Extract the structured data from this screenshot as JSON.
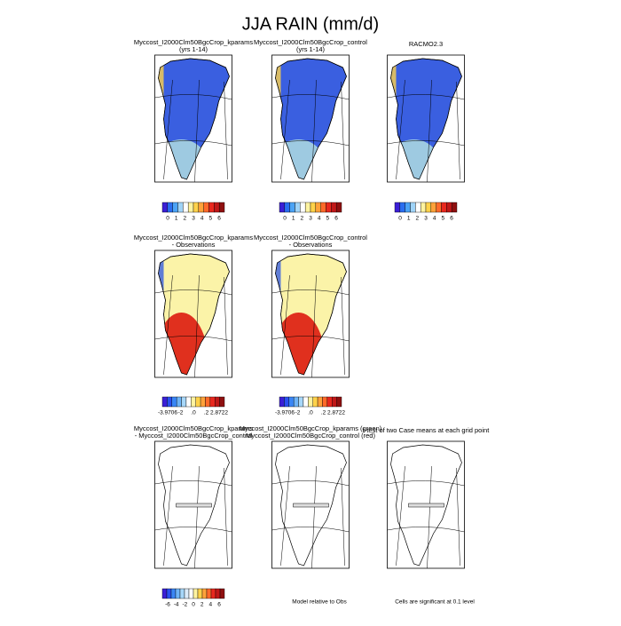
{
  "title": "JJA RAIN (mm/d)",
  "rows": [
    {
      "panels": [
        {
          "title": [
            "Myccost_I2000Clm50BgcCrop_kparams",
            "(yrs 1-14)"
          ],
          "colorbar": [
            "0",
            "1",
            "2",
            "3",
            "4",
            "5",
            "6"
          ]
        },
        {
          "title": [
            "Myccost_I2000Clm50BgcCrop_control",
            "(yrs 1-14)"
          ],
          "colorbar": [
            "0",
            "1",
            "2",
            "3",
            "4",
            "5",
            "6"
          ]
        },
        {
          "title": [
            "RACMO2.3"
          ],
          "colorbar": [
            "0",
            "1",
            "2",
            "3",
            "4",
            "5",
            "6"
          ]
        }
      ]
    },
    {
      "panels": [
        {
          "title": [
            "Myccost_I2000Clm50BgcCrop_kparams",
            "- Observations"
          ],
          "colorbar": [
            "-3.9706",
            "-2",
            ".0",
            ".2",
            "2.8722"
          ]
        },
        {
          "title": [
            "Myccost_I2000Clm50BgcCrop_control",
            "- Observations"
          ],
          "colorbar": [
            "-3.9706",
            "-2",
            ".0",
            ".2",
            "2.8722"
          ]
        }
      ]
    },
    {
      "panels": [
        {
          "title": [
            "Myccost_I2000Clm50BgcCrop_kparams",
            "- Myccost_I2000Clm50BgcCrop_control"
          ],
          "colorbar": [
            "-6",
            "-4",
            "-2",
            "0",
            "2",
            "4",
            "6"
          ]
        },
        {
          "title": [
            "Myccost_I2000Clm50BgcCrop_kparams (green)",
            "Myccost_I2000Clm50BgcCrop_control (red)"
          ],
          "note": "Model relative to Obs"
        },
        {
          "title": [
            "t-test of two Case means at each grid point"
          ],
          "note": "Cells are significant at 0.1 level"
        }
      ]
    }
  ]
}
